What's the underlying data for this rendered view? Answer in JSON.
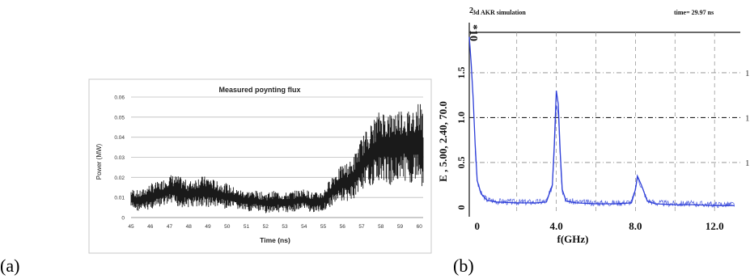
{
  "panels": [
    {
      "label": "(a)"
    },
    {
      "label": "(b)"
    }
  ],
  "chart_data": [
    {
      "type": "line",
      "title": "Measured poynting flux",
      "xlabel": "Time (ns)",
      "ylabel": "Power (MW)",
      "xlim": [
        45,
        60.2
      ],
      "ylim": [
        0,
        0.06
      ],
      "x_ticks": [
        "45",
        "46",
        "47",
        "48",
        "49",
        "50",
        "51",
        "52",
        "53",
        "54",
        "55",
        "56",
        "57",
        "58",
        "59",
        "60"
      ],
      "y_ticks": [
        "0",
        "0.01",
        "0.02",
        "0.03",
        "0.04",
        "0.05",
        "0.06"
      ],
      "grid": "horizontal",
      "series": [
        {
          "color": "#1a1a1a",
          "x": [
            45.0,
            45.5,
            46.0,
            46.5,
            47.0,
            47.5,
            48.0,
            48.5,
            49.0,
            49.5,
            50.0,
            50.5,
            51.0,
            51.5,
            52.0,
            52.5,
            53.0,
            53.5,
            54.0,
            54.5,
            55.0,
            55.5,
            56.0,
            56.5,
            57.0,
            57.5,
            58.0,
            58.5,
            59.0,
            59.5,
            60.0,
            60.2
          ],
          "y": [
            0.008,
            0.007,
            0.009,
            0.01,
            0.012,
            0.011,
            0.01,
            0.011,
            0.011,
            0.01,
            0.009,
            0.008,
            0.007,
            0.007,
            0.006,
            0.007,
            0.006,
            0.007,
            0.008,
            0.006,
            0.007,
            0.012,
            0.015,
            0.016,
            0.024,
            0.028,
            0.032,
            0.03,
            0.033,
            0.031,
            0.034,
            0.03
          ],
          "spread": [
            0.004,
            0.004,
            0.005,
            0.005,
            0.006,
            0.006,
            0.005,
            0.006,
            0.006,
            0.005,
            0.005,
            0.004,
            0.004,
            0.004,
            0.004,
            0.004,
            0.004,
            0.004,
            0.004,
            0.004,
            0.004,
            0.006,
            0.007,
            0.008,
            0.01,
            0.012,
            0.014,
            0.014,
            0.014,
            0.014,
            0.016,
            0.016
          ]
        }
      ]
    },
    {
      "type": "line",
      "title": "3d AKR simulation",
      "time_label": "time= 29.97 ns",
      "xlabel": "f(GHz)",
      "ylabel": "E , 5.00, 2.40, 70.0",
      "y_multiplier": "*10",
      "y_multiplier_exp": "2",
      "xlim": [
        -0.4,
        13.3
      ],
      "ylim": [
        -0.05,
        1.95
      ],
      "x_ticks": [
        {
          "v": 0,
          "label": "0"
        },
        {
          "v": 4,
          "label": "4.0"
        },
        {
          "v": 8,
          "label": "8.0"
        },
        {
          "v": 12,
          "label": "12.0"
        }
      ],
      "y_ticks": [
        {
          "v": 0,
          "label": "0"
        },
        {
          "v": 0.5,
          "label": "0.5"
        },
        {
          "v": 1.0,
          "label": "1.0"
        },
        {
          "v": 1.5,
          "label": "1.5"
        }
      ],
      "grid": "dashed",
      "right_tick_labels": [
        "1",
        "1",
        "1"
      ],
      "series": [
        {
          "color": "#2e3fd8",
          "x": [
            -0.4,
            -0.3,
            -0.2,
            -0.1,
            0.0,
            0.2,
            0.5,
            1.0,
            2.0,
            3.0,
            3.5,
            3.8,
            3.9,
            4.0,
            4.1,
            4.2,
            4.3,
            4.5,
            5.0,
            6.0,
            7.0,
            7.8,
            8.0,
            8.1,
            8.3,
            8.6,
            9.0,
            10.0,
            11.0,
            12.0,
            13.0
          ],
          "y": [
            1.9,
            1.6,
            1.2,
            0.7,
            0.3,
            0.15,
            0.08,
            0.06,
            0.05,
            0.05,
            0.06,
            0.25,
            0.7,
            1.3,
            1.15,
            0.6,
            0.2,
            0.07,
            0.05,
            0.04,
            0.04,
            0.05,
            0.2,
            0.35,
            0.25,
            0.07,
            0.04,
            0.03,
            0.03,
            0.02,
            0.02
          ]
        }
      ]
    }
  ]
}
